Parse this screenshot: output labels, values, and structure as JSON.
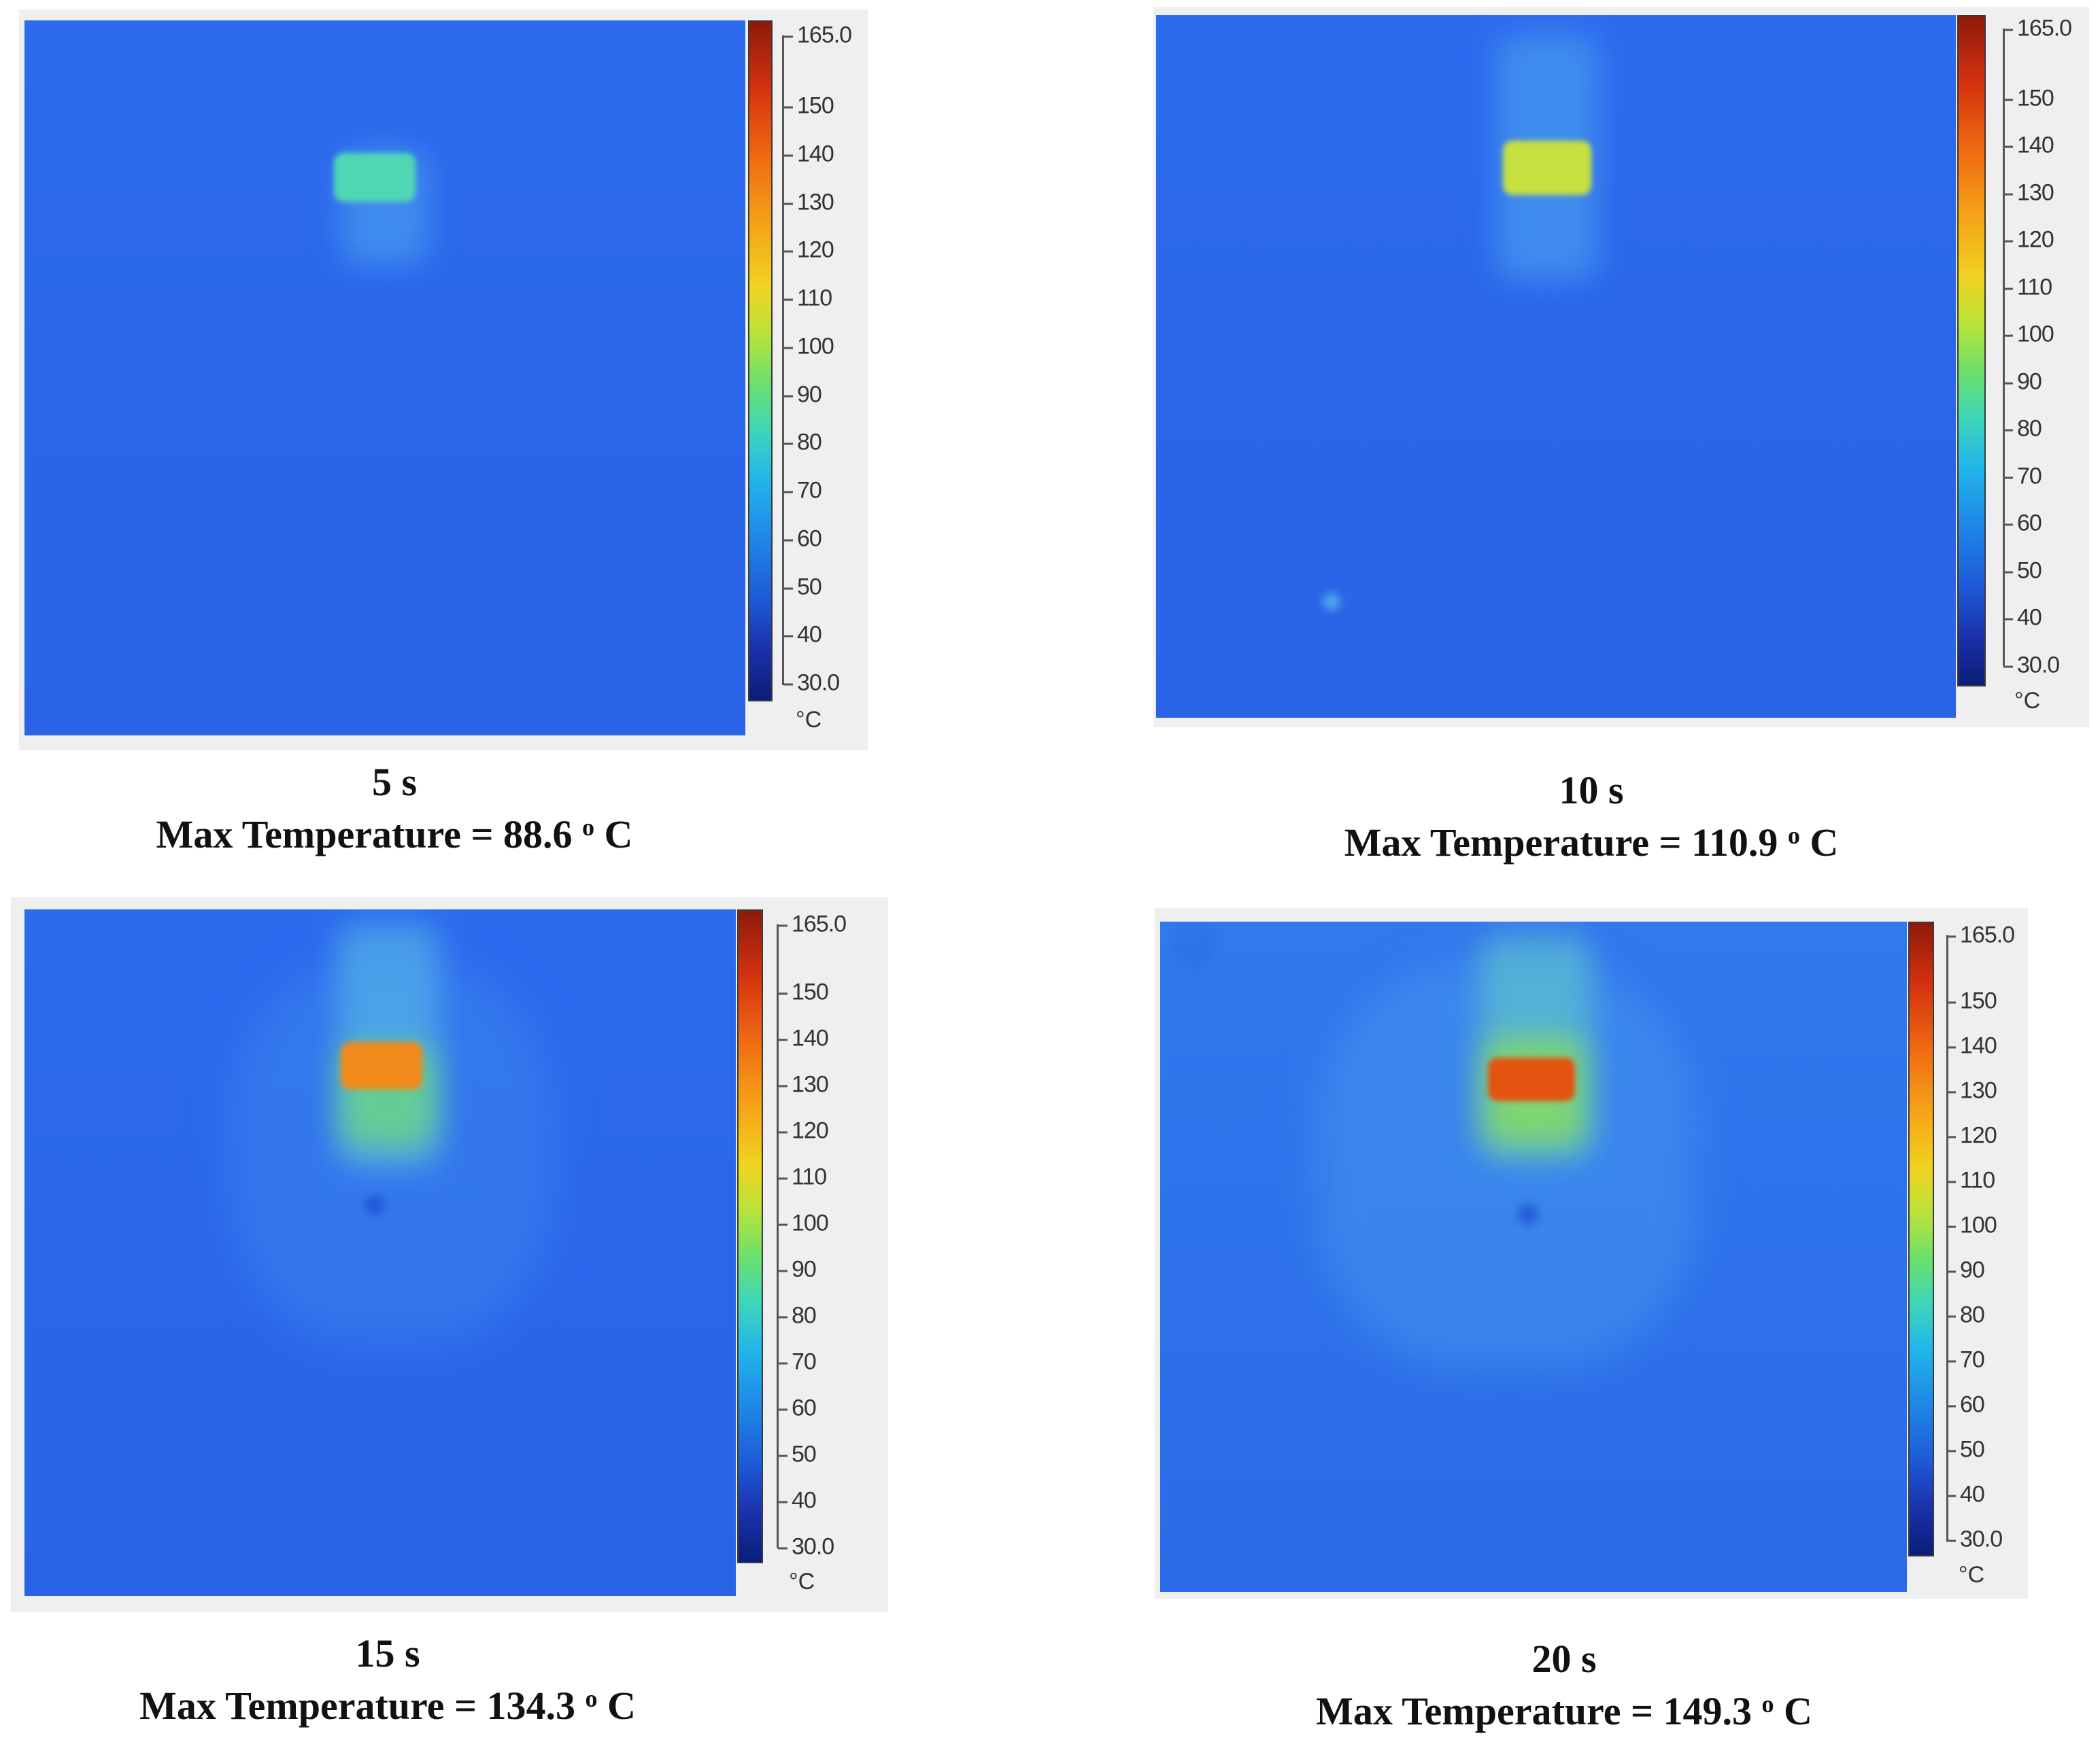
{
  "colorbar": {
    "ticks": [
      "165.0",
      "150",
      "140",
      "130",
      "120",
      "110",
      "100",
      "90",
      "80",
      "70",
      "60",
      "50",
      "40",
      "30.0"
    ],
    "unit": "°C",
    "range": [
      30,
      165
    ]
  },
  "panels": [
    {
      "time": "5 s",
      "max_label": "Max Temperature  = 88.6",
      "max_value": 88.6,
      "degree_mark": "o",
      "unit": " C"
    },
    {
      "time": "10 s",
      "max_label": "Max Temperature = 110.9",
      "max_value": 110.9,
      "degree_mark": "o",
      "unit": " C"
    },
    {
      "time": "15 s",
      "max_label": "Max Temperature = 134.3",
      "max_value": 134.3,
      "degree_mark": "o",
      "unit": " C"
    },
    {
      "time": "20 s",
      "max_label": "Max Temperature  = 149.3",
      "max_value": 149.3,
      "degree_mark": "o",
      "unit": " C"
    }
  ]
}
